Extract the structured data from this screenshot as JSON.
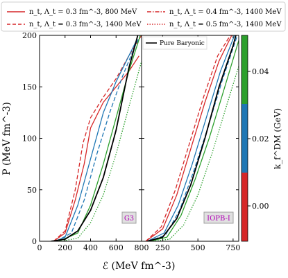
{
  "chart_data": {
    "type": "line",
    "legend": [
      {
        "name": "n_t, Λ_t = 0.3 fm^-3, 800 MeV",
        "color": "#d62728",
        "style": "solid"
      },
      {
        "name": "n_t, Λ_t = 0.3 fm^-3, 1400 MeV",
        "color": "#d62728",
        "style": "dashed"
      },
      {
        "name": "n_t, Λ_t = 0.4 fm^-3, 1400 MeV",
        "color": "#d62728",
        "style": "dashdot"
      },
      {
        "name": "n_t, Λ_t = 0.5 fm^-3, 1400 MeV",
        "color": "#d62728",
        "style": "dotted"
      }
    ],
    "legend_labels": [
      "n_t, Λ_t = 0.3 fm^-3, 800 MeV",
      "n_t, Λ_t = 0.3 fm^-3, 1400 MeV",
      "n_t, Λ_t = 0.4 fm^-3, 1400 MeV",
      "n_t, Λ_t = 0.5 fm^-3, 1400 MeV"
    ],
    "ylabel": "P (MeV fm^-3)",
    "xlabel": "ℰ (MeV fm^-3)",
    "ylim": [
      0,
      200
    ],
    "yticks": [
      "0",
      "50",
      "100",
      "150",
      "200"
    ],
    "colorbar": {
      "label": "k_f^DM (GeV)",
      "ticks": [
        "0.00",
        "0.02",
        "0.04"
      ],
      "colors": [
        "#d62728",
        "#1f77b4",
        "#2ca02c"
      ]
    },
    "panels": [
      {
        "tag": "G3",
        "xlim": [
          0,
          800
        ],
        "xticks": [
          "0",
          "200",
          "400",
          "600",
          "800"
        ],
        "series": [
          {
            "name": "Pure Baryonic",
            "color": "#000000",
            "style": "solid",
            "x": [
              90,
              200,
              300,
              400,
              500,
              600,
              700,
              770
            ],
            "y": [
              0,
              2,
              10,
              30,
              62,
              108,
              168,
              200
            ]
          },
          {
            "color": "#d62728",
            "style": "solid",
            "x": [
              110,
              200,
              280,
              350,
              400,
              500,
              600,
              700,
              780
            ],
            "y": [
              0,
              8,
              40,
              75,
              110,
              135,
              150,
              165,
              180
            ]
          },
          {
            "color": "#d62728",
            "style": "dashed",
            "x": [
              110,
              200,
              280,
              340,
              400,
              500,
              600,
              700,
              800
            ],
            "y": [
              0,
              10,
              50,
              95,
              120,
              140,
              158,
              180,
              200
            ]
          },
          {
            "color": "#1f77b4",
            "style": "solid",
            "x": [
              120,
              200,
              300,
              400,
              500,
              600,
              700,
              760
            ],
            "y": [
              0,
              4,
              35,
              80,
              125,
              155,
              180,
              195
            ]
          },
          {
            "color": "#1f77b4",
            "style": "dashed",
            "x": [
              130,
              250,
              350,
              450,
              550,
              650,
              750,
              790
            ],
            "y": [
              0,
              8,
              40,
              85,
              125,
              160,
              190,
              200
            ]
          },
          {
            "color": "#2ca02c",
            "style": "solid",
            "x": [
              150,
              300,
              400,
              500,
              600,
              700,
              790
            ],
            "y": [
              0,
              8,
              35,
              75,
              120,
              165,
              200
            ]
          },
          {
            "color": "#2ca02c",
            "style": "dotted",
            "x": [
              170,
              300,
              400,
              500,
              600,
              700,
              800
            ],
            "y": [
              0,
              3,
              18,
              45,
              85,
              130,
              175
            ]
          }
        ]
      },
      {
        "tag": "IOPB-I",
        "xlim": [
          100,
          790
        ],
        "xticks": [
          "250",
          "500",
          "750"
        ],
        "series": [
          {
            "name": "Pure Baryonic",
            "color": "#000000",
            "style": "solid",
            "x": [
              140,
              250,
              350,
              450,
              550,
              650,
              750,
              770
            ],
            "y": [
              0,
              4,
              22,
              55,
              100,
              150,
              190,
              200
            ]
          },
          {
            "color": "#d62728",
            "style": "solid",
            "x": [
              130,
              250,
              350,
              450,
              550,
              650,
              740
            ],
            "y": [
              0,
              12,
              45,
              90,
              135,
              175,
              200
            ]
          },
          {
            "color": "#d62728",
            "style": "dashed",
            "x": [
              130,
              240,
              340,
              440,
              540,
              640,
              730
            ],
            "y": [
              0,
              14,
              50,
              95,
              140,
              180,
              200
            ]
          },
          {
            "color": "#1f77b4",
            "style": "solid",
            "x": [
              140,
              260,
              360,
              460,
              560,
              660,
              760
            ],
            "y": [
              0,
              8,
              35,
              75,
              120,
              165,
              200
            ]
          },
          {
            "color": "#1f77b4",
            "style": "dashed",
            "x": [
              150,
              270,
              370,
              470,
              570,
              670,
              780
            ],
            "y": [
              0,
              6,
              30,
              68,
              110,
              155,
              200
            ]
          },
          {
            "color": "#2ca02c",
            "style": "solid",
            "x": [
              160,
              280,
              380,
              480,
              580,
              680,
              790
            ],
            "y": [
              0,
              4,
              25,
              60,
              100,
              145,
              195
            ]
          },
          {
            "color": "#2ca02c",
            "style": "dotted",
            "x": [
              180,
              300,
              400,
              500,
              600,
              700,
              790
            ],
            "y": [
              0,
              2,
              16,
              45,
              85,
              130,
              170
            ]
          }
        ]
      }
    ]
  }
}
